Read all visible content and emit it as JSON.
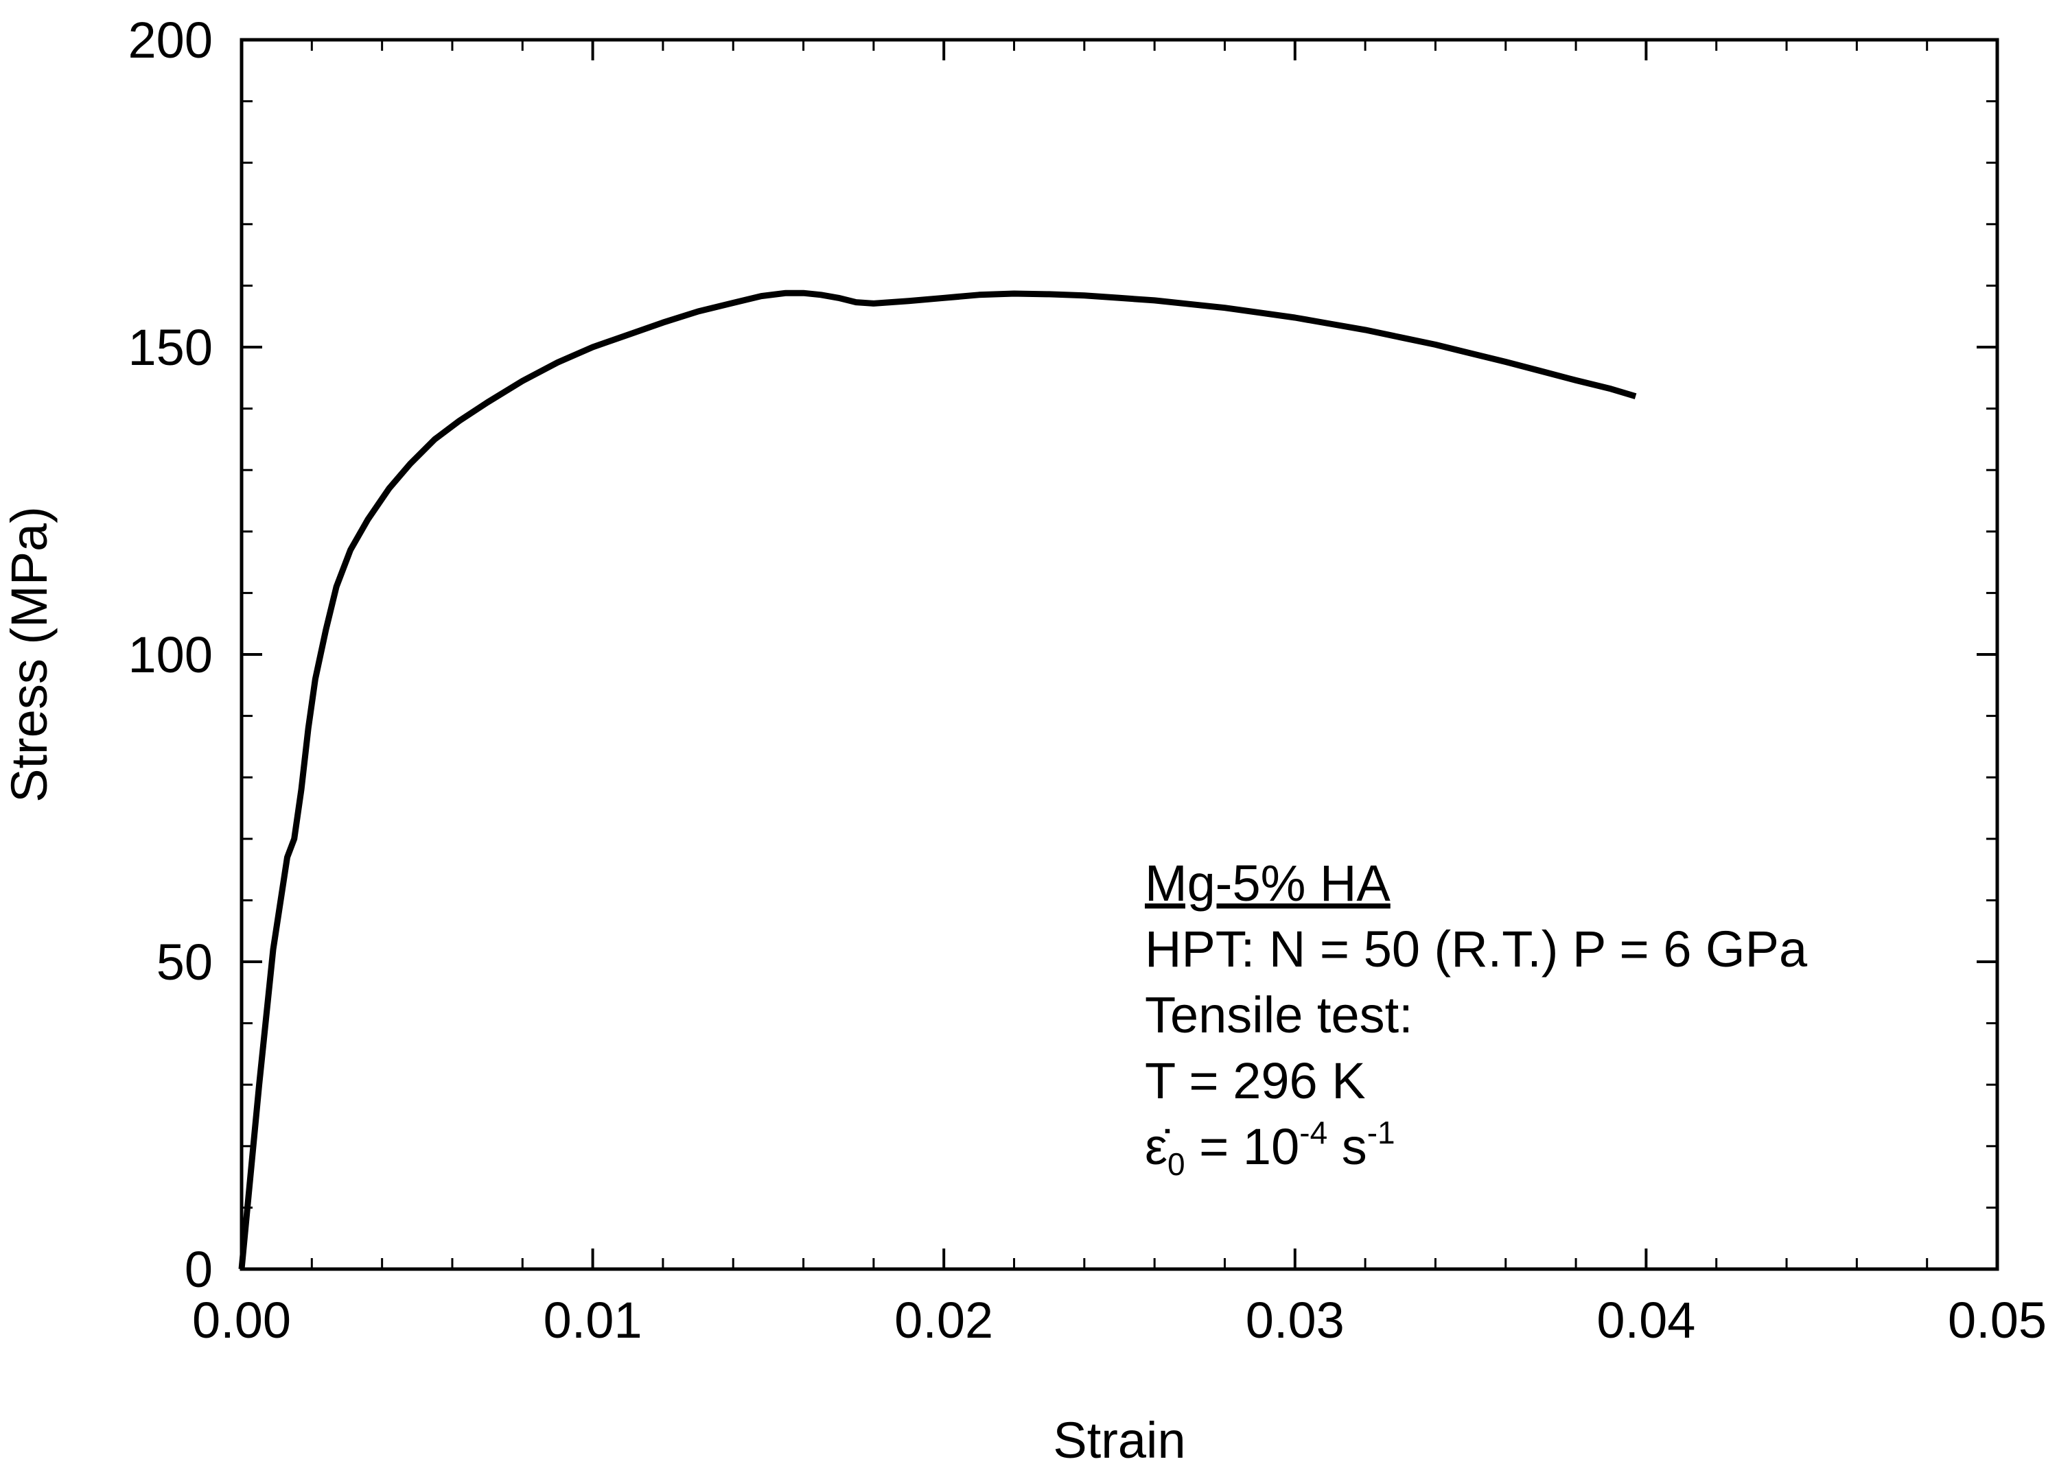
{
  "chart_data": {
    "type": "line",
    "title": "",
    "xlabel": "Strain",
    "ylabel": "Stress (MPa)",
    "xlim": [
      0,
      0.05
    ],
    "ylim": [
      0,
      200
    ],
    "grid": false,
    "x_ticks": [
      0,
      0.01,
      0.02,
      0.03,
      0.04,
      0.05
    ],
    "x_tick_labels": [
      "0.00",
      "0.01",
      "0.02",
      "0.03",
      "0.04",
      "0.05"
    ],
    "y_ticks": [
      0,
      50,
      100,
      150,
      200
    ],
    "y_tick_labels": [
      "0",
      "50",
      "100",
      "150",
      "200"
    ],
    "series": [
      {
        "name": "Mg-5% HA",
        "color": "#000000",
        "x": [
          0.0,
          0.0002,
          0.0005,
          0.0009,
          0.0013,
          0.0015,
          0.0017,
          0.0019,
          0.0021,
          0.0024,
          0.0027,
          0.0031,
          0.0036,
          0.0042,
          0.0048,
          0.0055,
          0.0062,
          0.007,
          0.008,
          0.009,
          0.01,
          0.011,
          0.012,
          0.013,
          0.014,
          0.0148,
          0.0155,
          0.016,
          0.0165,
          0.017,
          0.0175,
          0.018,
          0.019,
          0.02,
          0.021,
          0.022,
          0.023,
          0.024,
          0.025,
          0.026,
          0.027,
          0.028,
          0.029,
          0.03,
          0.031,
          0.032,
          0.033,
          0.034,
          0.035,
          0.036,
          0.037,
          0.038,
          0.039,
          0.0397
        ],
        "values": [
          0,
          12,
          30,
          52,
          67,
          70,
          78,
          88,
          96,
          104,
          111,
          117,
          122,
          127,
          131,
          135,
          138,
          141,
          144.5,
          147.5,
          150,
          152,
          154,
          155.8,
          157.2,
          158.3,
          158.8,
          158.8,
          158.5,
          158,
          157.3,
          157.1,
          157.5,
          158,
          158.5,
          158.7,
          158.6,
          158.4,
          158,
          157.6,
          157,
          156.4,
          155.6,
          154.8,
          153.8,
          152.8,
          151.6,
          150.4,
          149,
          147.6,
          146.1,
          144.6,
          143.2,
          142
        ]
      }
    ],
    "annotations": [
      {
        "text": "Mg-5% HA",
        "underline": true
      },
      {
        "text": "HPT: N = 50 (R.T.) P = 6 GPa"
      },
      {
        "text": "Tensile test:"
      },
      {
        "text": "T = 296 K"
      },
      {
        "text": "ε̇",
        "sub": "0",
        "mid": " = 10",
        "sup": "-4",
        "tail": " s",
        "sup2": "-1"
      }
    ]
  }
}
